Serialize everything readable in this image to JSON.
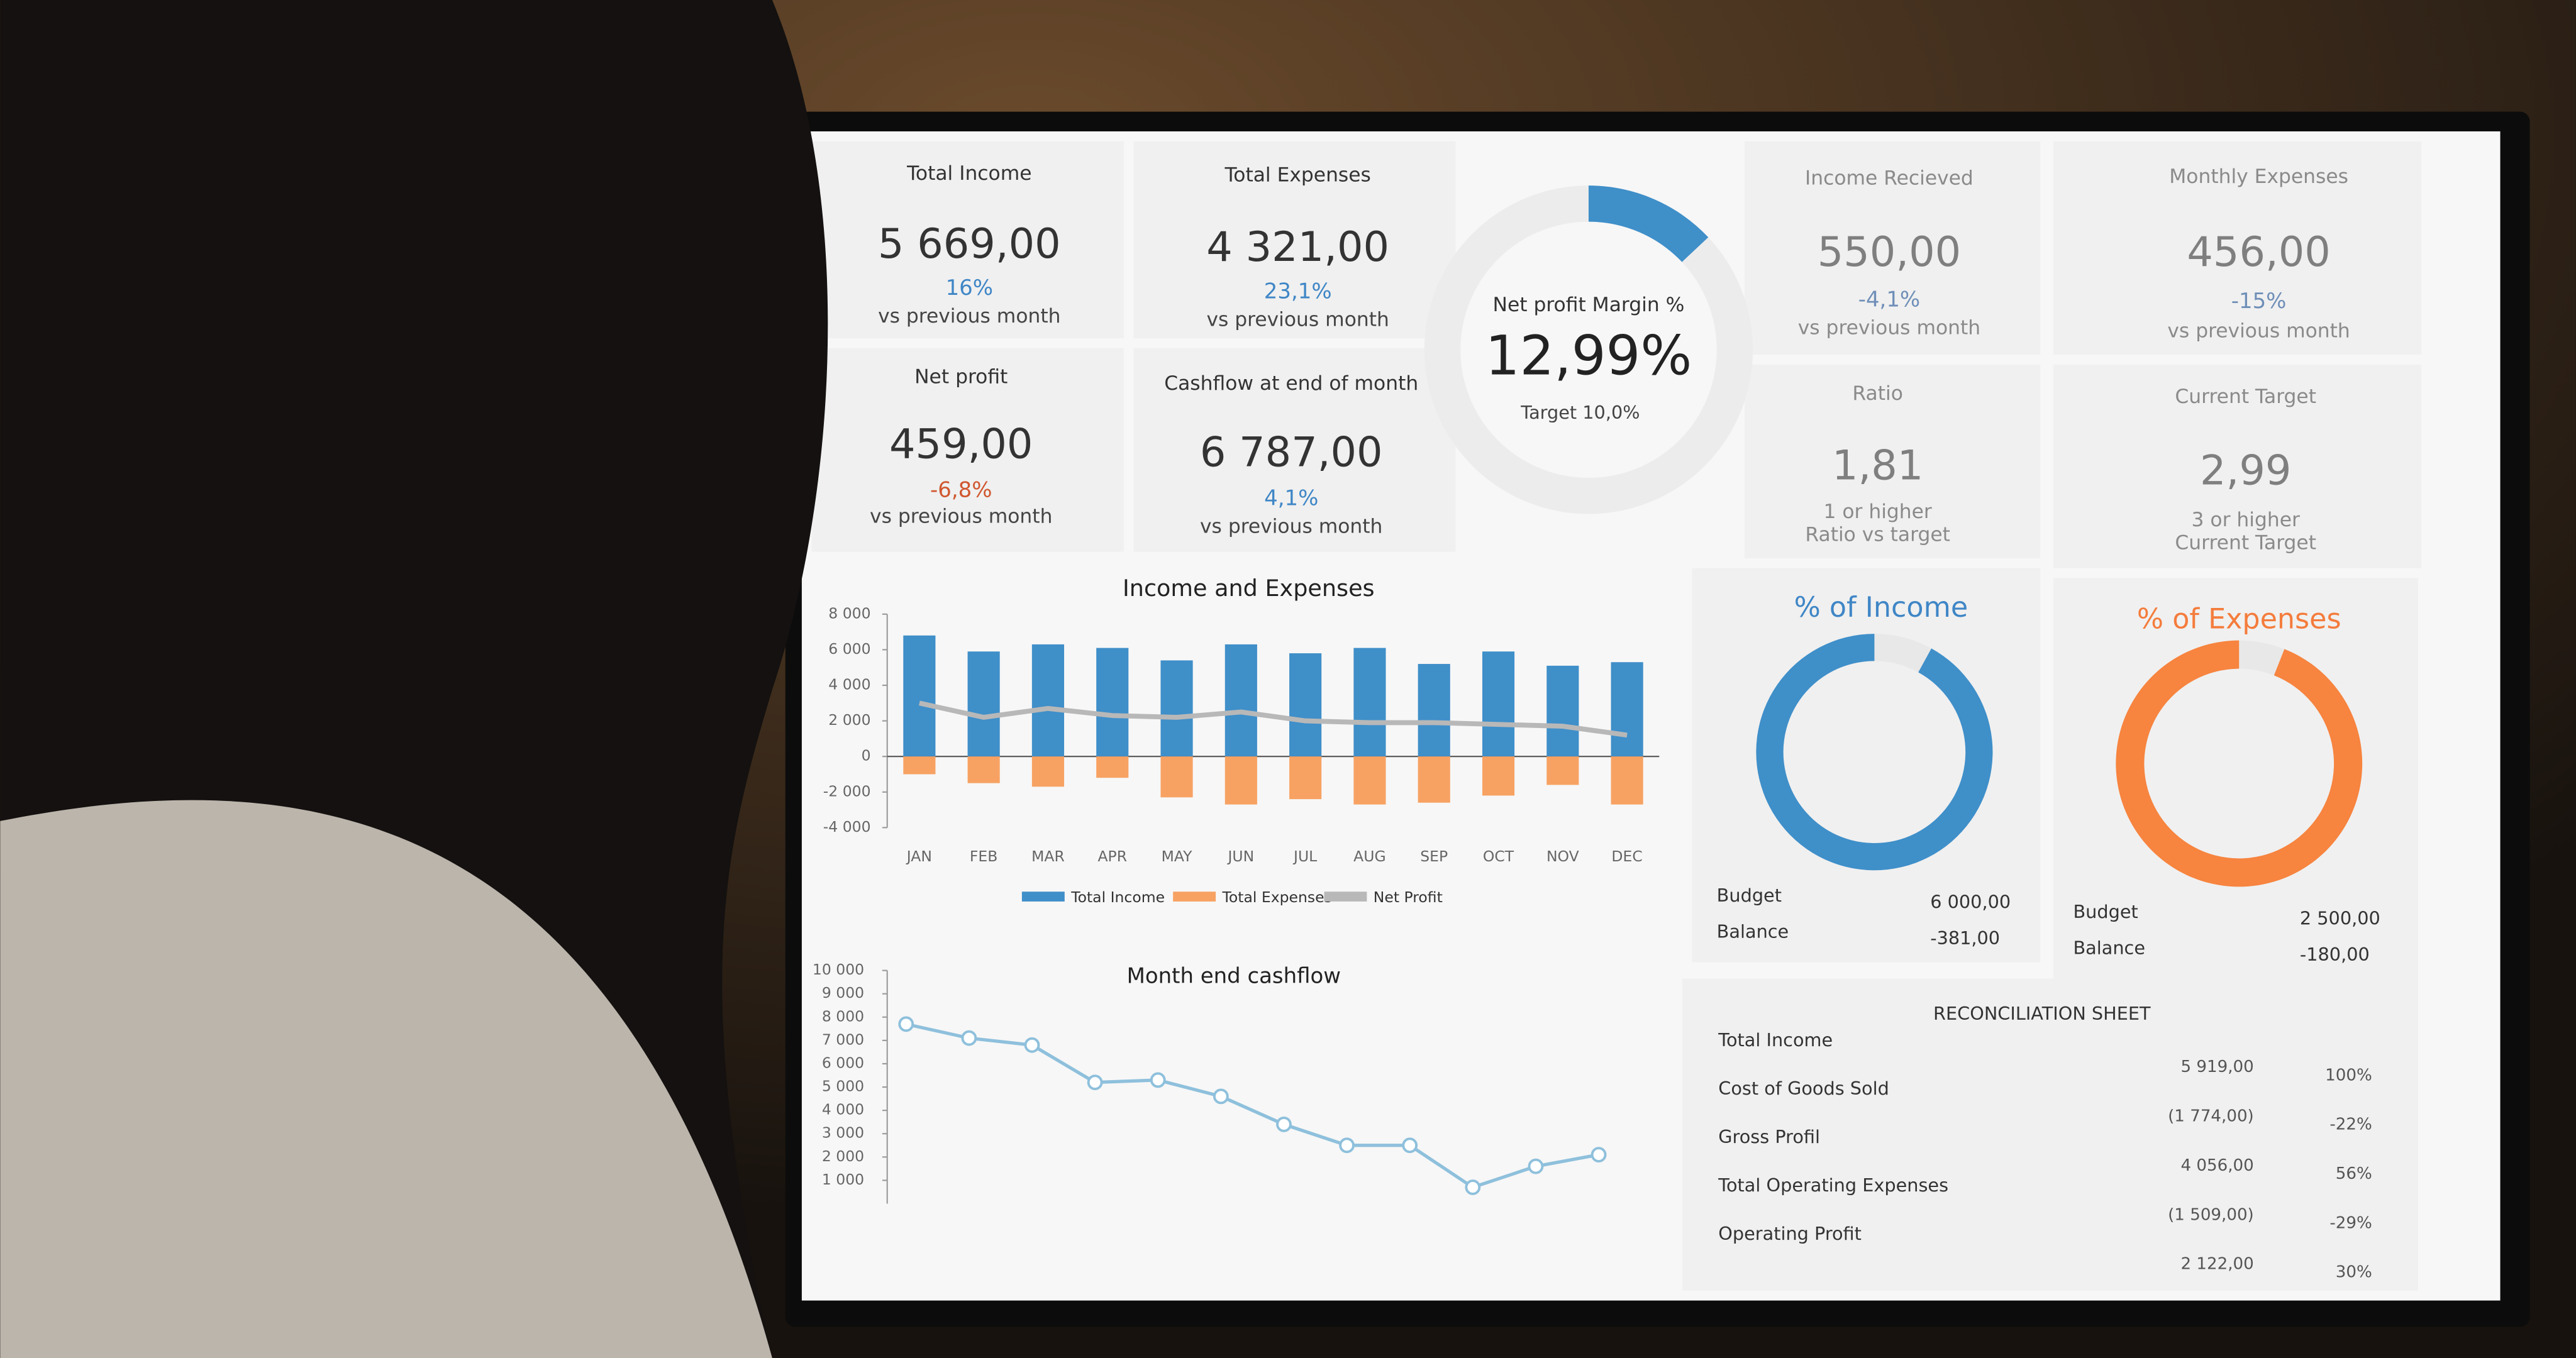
{
  "kpis": [
    {
      "title": "Total Income",
      "value": "5 669,00",
      "change": "16%",
      "note": [
        "vs previous month"
      ],
      "color": "#3f86c6"
    },
    {
      "title": "Total Expenses",
      "value": "4 321,00",
      "change": "23,1%",
      "note": [
        "vs previous month"
      ],
      "color": "#3f86c6"
    },
    {
      "title": "Net profit",
      "value": "459,00",
      "change": "-6,8%",
      "note": [
        "vs previous month"
      ],
      "color": "#d0572f"
    },
    {
      "title": "Cashflow at end of month",
      "value": "6 787,00",
      "change": "4,1%",
      "note": [
        "vs previous month"
      ],
      "color": "#3f86c6"
    },
    {
      "title": "Income Recieved",
      "value": "550,00",
      "change": "-4,1%",
      "note": [
        "vs previous month"
      ],
      "color": "#6f8fb8"
    },
    {
      "title": "Monthly Expenses",
      "value": "456,00",
      "change": "-15%",
      "note": [
        "vs previous month"
      ],
      "color": "#6f8fb8"
    },
    {
      "title": "Ratio",
      "value": "1,81",
      "change": "",
      "note": [
        "1 or higher",
        "Ratio vs target"
      ],
      "color": "#6f8fb8"
    },
    {
      "title": "Current Target",
      "value": "2,99",
      "change": "",
      "note": [
        "3 or higher",
        "Current Target"
      ],
      "color": "#6f8fb8"
    }
  ],
  "chart_data": [
    {
      "type": "gauge",
      "title": "Net profit Margin %",
      "value": 12.99,
      "value_label": "12,99%",
      "subtitle": "Target 10,0%",
      "color": "#3f8fc9"
    },
    {
      "type": "bar",
      "title": "Income and Expenses",
      "categories": [
        "JAN",
        "FEB",
        "MAR",
        "APR",
        "MAY",
        "JUN",
        "JUL",
        "AUG",
        "SEP",
        "OCT",
        "NOV",
        "DEC"
      ],
      "series": [
        {
          "name": "Total Income",
          "color": "#3f8fc9",
          "values": [
            6800,
            5900,
            6300,
            6100,
            5400,
            6300,
            5800,
            6100,
            5200,
            5900,
            5100,
            5300
          ]
        },
        {
          "name": "Total Expenses",
          "color": "#f7a263",
          "values": [
            -1000,
            -1500,
            -1700,
            -1200,
            -2300,
            -2700,
            -2400,
            -2700,
            -2600,
            -2200,
            -1600,
            -2700
          ]
        },
        {
          "name": "Net Profit",
          "color": "#b8b8b8",
          "line": true,
          "values": [
            3000,
            2200,
            2700,
            2300,
            2200,
            2500,
            2000,
            1900,
            1900,
            1800,
            1700,
            1200
          ]
        }
      ],
      "ylim": [
        -4000,
        8000
      ],
      "yticks": [
        {
          "value": 8000,
          "label": "8 000"
        },
        {
          "value": 6000,
          "label": "6 000"
        },
        {
          "value": 4000,
          "label": "4 000"
        },
        {
          "value": 2000,
          "label": "2 000"
        },
        0,
        {
          "value": -2000,
          "label": "-2 000"
        },
        {
          "value": -4000,
          "label": "-4 000"
        }
      ]
    },
    {
      "type": "line",
      "title": "Month end cashflow",
      "color": "#8ec0dc",
      "values": [
        7700,
        7100,
        6800,
        5200,
        5300,
        4600,
        3400,
        2500,
        2500,
        700,
        1600,
        2100
      ],
      "ylim": [
        0,
        10000
      ],
      "yticks": [
        {
          "value": 10000,
          "label": "10 000"
        },
        {
          "value": 9000,
          "label": "9 000"
        },
        {
          "value": 8000,
          "label": "8 000"
        },
        {
          "value": 7000,
          "label": "7 000"
        },
        {
          "value": 6000,
          "label": "6 000"
        },
        {
          "value": 5000,
          "label": "5 000"
        },
        {
          "value": 4000,
          "label": "4 000"
        },
        {
          "value": 3000,
          "label": "3 000"
        },
        {
          "value": 2000,
          "label": "2 000"
        },
        {
          "value": 1000,
          "label": "1 000"
        }
      ]
    },
    {
      "type": "pie",
      "title": "% of Income",
      "title_color": "#3f86c6",
      "values": [
        8,
        92
      ],
      "colors": [
        "#e8e8e8",
        "#3f8fc9"
      ],
      "rows": [
        [
          "Budget",
          "6 000,00"
        ],
        [
          "Balance",
          "-381,00"
        ]
      ]
    },
    {
      "type": "pie",
      "title": "% of Expenses",
      "title_color": "#f47c3c",
      "values": [
        6,
        94
      ],
      "colors": [
        "#e8e8e8",
        "#f7843f"
      ],
      "rows": [
        [
          "Budget",
          "2 500,00"
        ],
        [
          "Balance",
          "-180,00"
        ]
      ]
    }
  ],
  "reconciliation": {
    "title": "RECONCILIATION SHEET",
    "rows": [
      [
        "Total Income",
        "5 919,00",
        "100%"
      ],
      [
        "Cost of Goods Sold",
        "(1 774,00)",
        "-22%"
      ],
      [
        "Gross Profil",
        "4 056,00",
        "56%"
      ],
      [
        "Total Operating Expenses",
        "(1 509,00)",
        "-29%"
      ],
      [
        "Operating Profit",
        "2 122,00",
        "30%"
      ]
    ]
  }
}
